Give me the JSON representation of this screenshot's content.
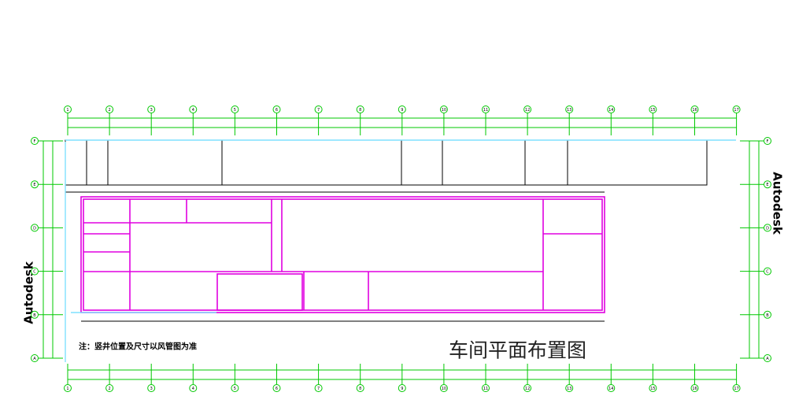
{
  "grid": {
    "columns": [
      "1",
      "2",
      "3",
      "4",
      "5",
      "6",
      "7",
      "8",
      "9",
      "10",
      "11",
      "12",
      "13",
      "14",
      "15",
      "16",
      "17"
    ],
    "rows": [
      "A",
      "B",
      "C",
      "D",
      "E",
      "F"
    ]
  },
  "watermarks": [
    "Autodesk",
    "Autodesk"
  ],
  "note": "注：竖井位置及尺寸以风管图为准",
  "title": "车间平面布置图"
}
